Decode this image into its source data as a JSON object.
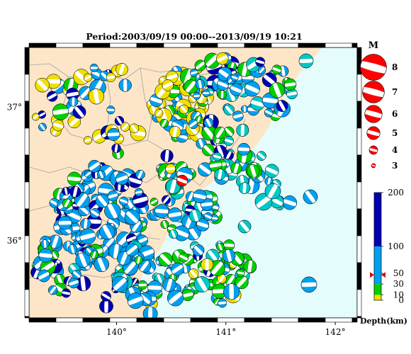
{
  "title": "Period:2003/09/19 00:00--2013/09/19 10:21",
  "map": {
    "x_ticks": [
      {
        "value": 140,
        "label": "140°"
      },
      {
        "value": 141,
        "label": "141°"
      },
      {
        "value": 142,
        "label": "142°"
      }
    ],
    "y_ticks": [
      {
        "value": 37,
        "label": "37°"
      },
      {
        "value": 36,
        "label": "36°"
      }
    ],
    "lon_range": [
      139.2,
      142.2
    ],
    "lat_range": [
      35.42,
      37.45
    ],
    "colors": {
      "land": "#fde6c8",
      "sea": "#e4fcfc",
      "border": "#000000",
      "prefecture_lines": "#a0a0a0"
    }
  },
  "magnitude_legend": {
    "title": "M",
    "entries": [
      {
        "magnitude": 8,
        "label": "8"
      },
      {
        "magnitude": 7,
        "label": "7"
      },
      {
        "magnitude": 6,
        "label": "6"
      },
      {
        "magnitude": 5,
        "label": "5"
      },
      {
        "magnitude": 4,
        "label": "4"
      },
      {
        "magnitude": 3,
        "label": "3"
      }
    ],
    "color": "#ff0000"
  },
  "depth_legend": {
    "title": "Depth(km)",
    "bands": [
      {
        "from": 0,
        "to": 10,
        "color": "#f0e000"
      },
      {
        "from": 10,
        "to": 30,
        "color": "#00d000"
      },
      {
        "from": 30,
        "to": 100,
        "color": "#00a0f0"
      },
      {
        "from": 100,
        "to": 200,
        "color": "#0000b0"
      }
    ],
    "ticks": [
      {
        "value": 200,
        "label": "200"
      },
      {
        "value": 100,
        "label": "100"
      },
      {
        "value": 50,
        "label": "50"
      },
      {
        "value": 30,
        "label": "30"
      },
      {
        "value": 10,
        "label": "10"
      },
      {
        "value": 0,
        "label": "0"
      }
    ],
    "marker_depth": 47,
    "marker_color": "#d01010"
  },
  "mainshock": {
    "lon": 140.6,
    "lat": 36.45,
    "color": "#ff0000",
    "magnitude": 5
  }
}
